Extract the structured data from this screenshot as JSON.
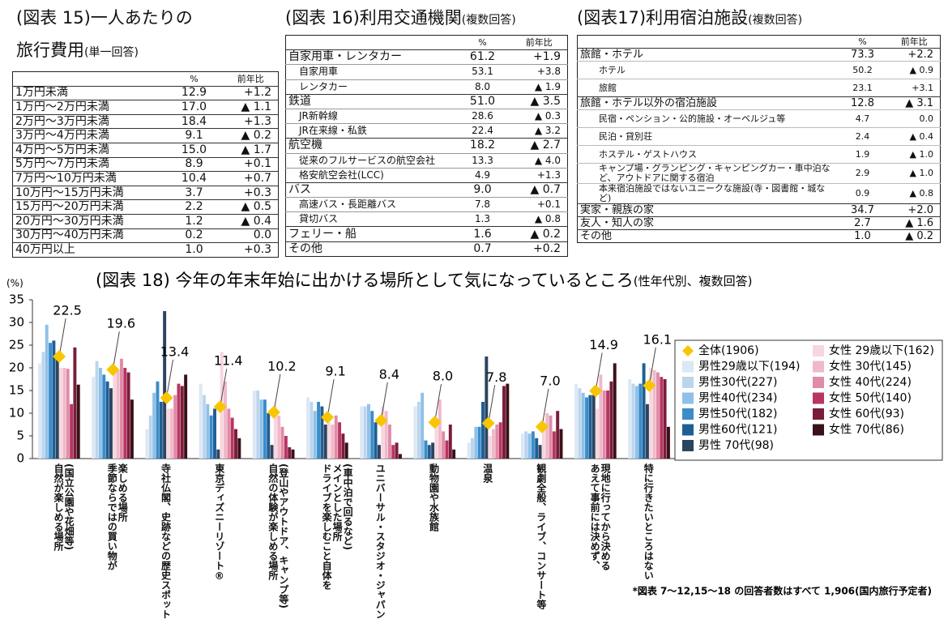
{
  "table15": {
    "title": "(図表 15)一人あたりの",
    "title2": "旅行費用",
    "note": "(単一回答)",
    "columns": [
      "%",
      "前年比"
    ],
    "rows": [
      {
        "label": "1万円未満",
        "pct": "12.9",
        "change": "+1.2"
      },
      {
        "label": "1万円～2万円未満",
        "pct": "17.0",
        "change": "▲ 1.1"
      },
      {
        "label": "2万円～3万円未満",
        "pct": "18.4",
        "change": "+1.3"
      },
      {
        "label": "3万円～4万円未満",
        "pct": "9.1",
        "change": "▲ 0.2"
      },
      {
        "label": "4万円～5万円未満",
        "pct": "15.0",
        "change": "▲ 1.7"
      },
      {
        "label": "5万円～7万円未満",
        "pct": "8.9",
        "change": "+0.1"
      },
      {
        "label": "7万円～10万円未満",
        "pct": "10.4",
        "change": "+0.7"
      },
      {
        "label": "10万円～15万円未満",
        "pct": "3.7",
        "change": "+0.3"
      },
      {
        "label": "15万円～20万円未満",
        "pct": "2.2",
        "change": "▲ 0.5"
      },
      {
        "label": "20万円～30万円未満",
        "pct": "1.2",
        "change": "▲ 0.4"
      },
      {
        "label": "30万円～40万円未満",
        "pct": "0.2",
        "change": "0.0"
      },
      {
        "label": "40万円以上",
        "pct": "1.0",
        "change": "+0.3"
      }
    ]
  },
  "table16": {
    "title": "(図表 16)利用交通機関",
    "note": "(複数回答)",
    "columns": [
      "%",
      "前年比"
    ],
    "rows": [
      {
        "label": "自家用車・レンタカー",
        "pct": "61.2",
        "change": "+1.9"
      },
      {
        "label": "自家用車",
        "pct": "53.1",
        "change": "+3.8",
        "sub": true
      },
      {
        "label": "レンタカー",
        "pct": "8.0",
        "change": "▲ 1.9",
        "sub": true
      },
      {
        "label": "鉄道",
        "pct": "51.0",
        "change": "▲ 3.5"
      },
      {
        "label": "JR新幹線",
        "pct": "28.6",
        "change": "▲ 0.3",
        "sub": true
      },
      {
        "label": "JR在来線・私鉄",
        "pct": "22.4",
        "change": "▲ 3.2",
        "sub": true
      },
      {
        "label": "航空機",
        "pct": "18.2",
        "change": "▲ 2.7"
      },
      {
        "label": "従来のフルサービスの航空会社",
        "pct": "13.3",
        "change": "▲ 4.0",
        "sub": true
      },
      {
        "label": "格安航空会社(LCC)",
        "pct": "4.9",
        "change": "+1.3",
        "sub": true
      },
      {
        "label": "バス",
        "pct": "9.0",
        "change": "▲ 0.7"
      },
      {
        "label": "高速バス・長距離バス",
        "pct": "7.8",
        "change": "+0.1",
        "sub": true
      },
      {
        "label": "貸切バス",
        "pct": "1.3",
        "change": "▲ 0.8",
        "sub": true
      },
      {
        "label": "フェリー・船",
        "pct": "1.6",
        "change": "▲ 0.2"
      },
      {
        "label": "その他",
        "pct": "0.7",
        "change": "+0.2"
      }
    ]
  },
  "table17": {
    "title": "(図表17)利用宿泊施設",
    "note": "(複数回答)",
    "columns": [
      "%",
      "前年比"
    ],
    "rows": [
      {
        "label": "旅館・ホテル",
        "pct": "73.3",
        "change": "+2.2"
      },
      {
        "label": "ホテル",
        "pct": "50.2",
        "change": "▲ 0.9",
        "sub": true
      },
      {
        "label": "旅館",
        "pct": "23.1",
        "change": "+3.1",
        "sub": true
      },
      {
        "label": "旅館・ホテル以外の宿泊施設",
        "pct": "12.8",
        "change": "▲ 3.1"
      },
      {
        "label": "民宿・ペンション・公的施設・オーベルジュ等",
        "pct": "4.7",
        "change": "0.0",
        "sub": true
      },
      {
        "label": "民泊・貸別荘",
        "pct": "2.4",
        "change": "▲ 0.4",
        "sub": true
      },
      {
        "label": "ホステル・ゲストハウス",
        "pct": "1.9",
        "change": "▲ 1.0",
        "sub": true
      },
      {
        "label": "キャンプ場・グランピング・キャンピングカー・車中泊など、アウトドアに関する宿泊",
        "pct": "2.9",
        "change": "▲ 1.0",
        "sub": true
      },
      {
        "label": "本来宿泊施設ではないユニークな施設(寺・図書館・城など)",
        "pct": "0.9",
        "change": "▲ 0.8",
        "sub": true
      },
      {
        "label": "実家・親族の家",
        "pct": "34.7",
        "change": "+2.0"
      },
      {
        "label": "友人・知人の家",
        "pct": "2.7",
        "change": "▲ 1.6"
      },
      {
        "label": "その他",
        "pct": "1.0",
        "change": "▲ 0.2"
      }
    ]
  },
  "chart_data": {
    "type": "bar",
    "title": "(図表 18) 今年の年末年始に出かける場所として気になっているところ",
    "subtitle": "(性年代別、複数回答)",
    "y_label": "(%)",
    "categories": [
      "自然が楽しめる場所\n(国立公園や花畑等)",
      "季節ならではの買い物が\n楽しめる場所",
      "寺社仏閣、史跡などの歴史スポット",
      "東京ディズニーリゾート®",
      "自然の体験が楽しめる場所\n(登山やアウトドア、キャンプ等)",
      "ドライブを楽しむこと自体を\nメインとした場所\n(車中泊で回るなど)",
      "ユニバーサル・スタジオ・ジャパン",
      "動物園や水族館",
      "温泉",
      "観劇全般、ライブ、コンサート等",
      "あえて事前には決めず、\n現地に行ってから決める",
      "特に行きたいところはない"
    ],
    "ylim": [
      0,
      35
    ],
    "yticks": [
      0,
      5,
      10,
      15,
      20,
      25,
      30,
      35
    ],
    "series": [
      {
        "name": "全体(1906)",
        "color": "#f7c600",
        "marker": "diamond",
        "values": [
          22.5,
          19.6,
          13.4,
          11.4,
          10.2,
          9.1,
          8.4,
          8.0,
          7.8,
          7.0,
          14.9,
          16.1
        ],
        "value_labels": [
          "22.5",
          "19.6",
          "13.4",
          "11.4",
          "10.2",
          "9.1",
          "8.4",
          "8.0",
          "7.8",
          "7.0",
          "14.9",
          "16.1"
        ]
      },
      {
        "name": "男性29歳以下(194)",
        "color": "#dce8f4",
        "values": [
          21,
          18,
          6.5,
          16.5,
          15,
          13.5,
          11.5,
          11.5,
          3.5,
          5.5,
          16.5,
          17.5
        ]
      },
      {
        "name": "男性30代(227)",
        "color": "#bcd5ee",
        "values": [
          23.5,
          21.5,
          9.5,
          14,
          15,
          12.5,
          11.5,
          12.5,
          4.5,
          6,
          15.5,
          16.5
        ]
      },
      {
        "name": "男性40代(234)",
        "color": "#8fc1e8",
        "values": [
          29.5,
          20,
          14.5,
          12,
          13,
          10.5,
          12,
          14.5,
          7,
          5.5,
          14.5,
          16
        ]
      },
      {
        "name": "男性50代(182)",
        "color": "#3a8cca",
        "values": [
          25.5,
          18.5,
          17,
          9.5,
          13,
          12.5,
          10.5,
          4,
          7,
          6,
          13.5,
          16.5
        ]
      },
      {
        "name": "男性60代(121)",
        "color": "#1f5e94",
        "values": [
          26,
          17,
          12.5,
          11,
          10,
          11.5,
          8,
          3,
          12.5,
          4.5,
          14,
          21
        ]
      },
      {
        "name": "男性 70代(98)",
        "color": "#2c4460",
        "values": [
          22,
          15.5,
          32.5,
          2,
          3,
          7.5,
          3,
          3.5,
          22.5,
          3,
          14,
          12
        ]
      },
      {
        "name": "女性 29歳以下(162)",
        "color": "#f7d6df",
        "values": [
          20,
          19,
          11,
          23.5,
          11.5,
          8,
          11.5,
          9,
          5,
          8,
          11,
          20
        ]
      },
      {
        "name": "女性 30代(145)",
        "color": "#f0b9c9",
        "values": [
          20,
          19.5,
          11,
          17,
          9.5,
          7.5,
          10.5,
          13,
          6.5,
          10,
          18.5,
          19.5
        ]
      },
      {
        "name": "女性 40代(224)",
        "color": "#e08ba7",
        "values": [
          19.8,
          22,
          14,
          11,
          7,
          9.5,
          7.5,
          6,
          7.5,
          9.5,
          15,
          19
        ]
      },
      {
        "name": "女性 50代(140)",
        "color": "#b83562",
        "values": [
          12,
          20,
          16.5,
          9,
          5,
          8,
          3,
          4,
          8,
          6,
          15,
          18
        ]
      },
      {
        "name": "女性 60代(93)",
        "color": "#7a1d3a",
        "values": [
          24.5,
          19,
          16,
          6.5,
          2.5,
          5.5,
          3.5,
          7.5,
          16,
          10.5,
          17,
          17.5
        ]
      },
      {
        "name": "女性 70代(86)",
        "color": "#3b1018",
        "values": [
          16.3,
          13,
          18.5,
          4.5,
          2,
          3.5,
          1,
          2,
          16.5,
          6.5,
          21,
          7
        ]
      }
    ]
  },
  "footnote": "*図表 7～12,15～18 の回答者数はすべて 1,906(国内旅行予定者)"
}
